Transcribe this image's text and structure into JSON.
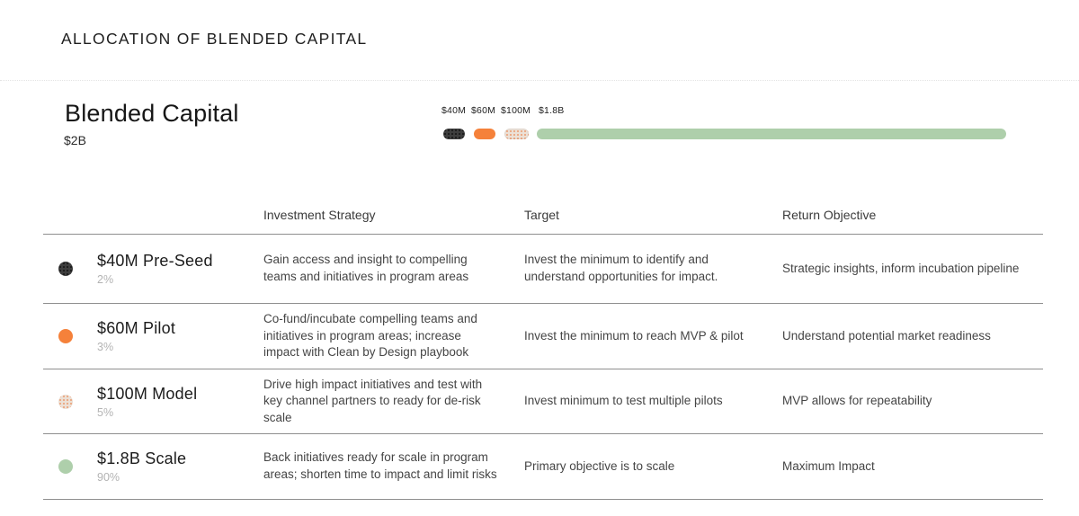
{
  "page_title": "ALLOCATION OF BLENDED CAPITAL",
  "overview": {
    "title": "Blended Capital",
    "total": "$2B"
  },
  "chart_data": {
    "type": "bar",
    "orientation": "horizontal-segmented",
    "title": "Blended Capital",
    "total_label": "$2B",
    "segments": [
      {
        "label": "$40M",
        "value_musd": 40,
        "percent": 2,
        "color": "#3e3e3e",
        "pattern": "dots-dark"
      },
      {
        "label": "$60M",
        "value_musd": 60,
        "percent": 3,
        "color": "#f5813a",
        "pattern": "solid"
      },
      {
        "label": "$100M",
        "value_musd": 100,
        "percent": 5,
        "color": "#ece1d7",
        "pattern": "dots-orange"
      },
      {
        "label": "$1.8B",
        "value_musd": 1800,
        "percent": 90,
        "color": "#aecfab",
        "pattern": "solid"
      }
    ]
  },
  "table": {
    "columns": [
      "Investment Strategy",
      "Target",
      "Return Objective"
    ],
    "rows": [
      {
        "name": "$40M Pre-Seed",
        "percent": "2%",
        "bullet_color": "#3e3e3e",
        "bullet_pattern": "dots-dark",
        "strategy": "Gain access and insight to compelling teams and initiatives in program areas",
        "target": "Invest the minimum to identify and understand opportunities for impact.",
        "return_objective": "Strategic insights, inform incubation pipeline"
      },
      {
        "name": "$60M Pilot",
        "percent": "3%",
        "bullet_color": "#f5813a",
        "bullet_pattern": "solid",
        "strategy": "Co-fund/incubate compelling teams and initiatives in program areas; increase impact with Clean by Design playbook",
        "target": "Invest the minimum to reach MVP & pilot",
        "return_objective": "Understand potential market readiness"
      },
      {
        "name": "$100M Model",
        "percent": "5%",
        "bullet_color": "#ece1d7",
        "bullet_pattern": "dots-orange",
        "strategy": "Drive high impact initiatives and test with key channel partners to ready for de-risk scale",
        "target": "Invest minimum to test multiple pilots",
        "return_objective": "MVP allows for repeatability"
      },
      {
        "name": "$1.8B Scale",
        "percent": "90%",
        "bullet_color": "#aecfab",
        "bullet_pattern": "solid",
        "strategy": "Back initiatives ready for scale in program areas; shorten time to impact and limit risks",
        "target": "Primary objective is to scale",
        "return_objective": "Maximum Impact"
      }
    ]
  }
}
